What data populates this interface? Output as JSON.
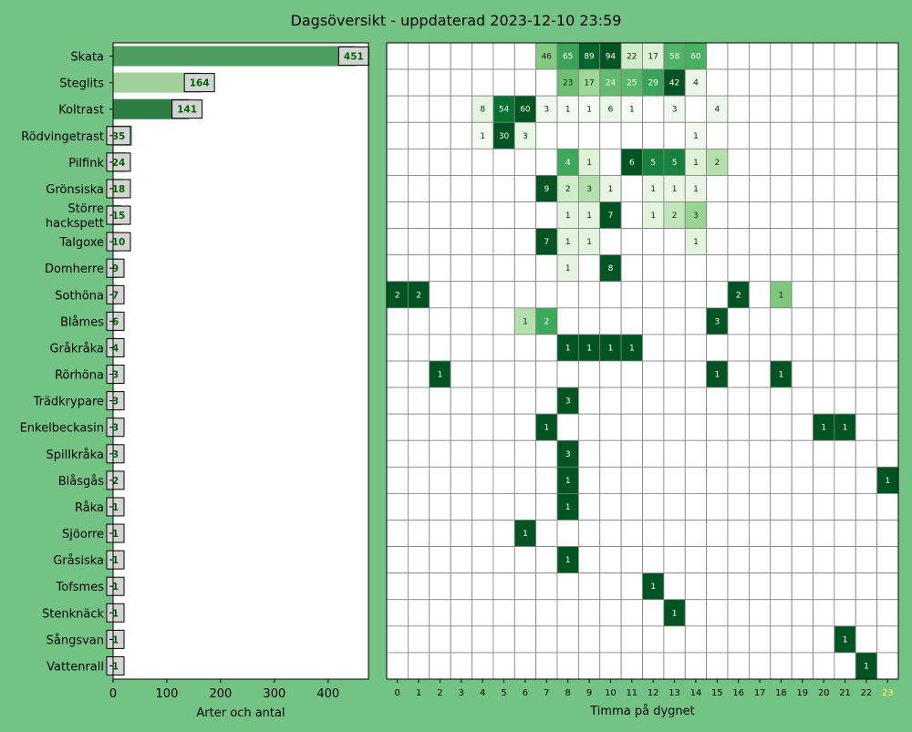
{
  "title": "Dagsöversikt - uppdaterad 2023-12-10 23:59",
  "chart_data": [
    {
      "type": "bar",
      "orientation": "horizontal",
      "xlabel": "Arter och antal",
      "xlim": [
        0,
        475
      ],
      "xticks": [
        0,
        100,
        200,
        300,
        400
      ],
      "categories": [
        "Skata",
        "Steglits",
        "Koltrast",
        "Rödvingetrast",
        "Pilfink",
        "Grönsiska",
        "Större\nhackspett",
        "Talgoxe",
        "Domherre",
        "Sothöna",
        "Blåmes",
        "Gråkråka",
        "Rörhöna",
        "Trädkrypare",
        "Enkelbeckasin",
        "Spillkråka",
        "Blåsgås",
        "Råka",
        "Sjöorre",
        "Gråsiska",
        "Tofsmes",
        "Stenknäck",
        "Sångsvan",
        "Vattenrall"
      ],
      "values": [
        451,
        164,
        141,
        35,
        24,
        18,
        15,
        10,
        9,
        7,
        6,
        4,
        3,
        3,
        3,
        3,
        2,
        1,
        1,
        1,
        1,
        1,
        1,
        1
      ],
      "colors": [
        "#4d9e5f",
        "#a2d09a",
        "#2e7d45",
        "#4d9e5f",
        "#a2d09a",
        "#a2d09a",
        "#4d9e5f",
        "#a2d09a",
        "#a2d09a",
        "#a2d09a",
        "#a2d09a",
        "#a2d09a",
        "#a2d09a",
        "#a2d09a",
        "#a2d09a",
        "#a2d09a",
        "#a2d09a",
        "#a2d09a",
        "#a2d09a",
        "#a2d09a",
        "#a2d09a",
        "#a2d09a",
        "#a2d09a",
        "#a2d09a"
      ]
    },
    {
      "type": "heatmap",
      "xlabel": "Timma på dygnet",
      "hours": [
        "0",
        "1",
        "2",
        "3",
        "4",
        "5",
        "6",
        "7",
        "8",
        "9",
        "10",
        "11",
        "12",
        "13",
        "14",
        "15",
        "16",
        "17",
        "18",
        "19",
        "20",
        "21",
        "22",
        "23"
      ],
      "highlight_hour": "23",
      "highlight_color": "#ffff55",
      "rows": [
        [
          0,
          0,
          0,
          0,
          0,
          0,
          0,
          46,
          65,
          89,
          94,
          22,
          17,
          58,
          60,
          0,
          0,
          0,
          0,
          0,
          0,
          0,
          0,
          0
        ],
        [
          0,
          0,
          0,
          0,
          0,
          0,
          0,
          0,
          23,
          17,
          24,
          25,
          29,
          42,
          4,
          0,
          0,
          0,
          0,
          0,
          0,
          0,
          0,
          0
        ],
        [
          0,
          0,
          0,
          0,
          8,
          54,
          60,
          3,
          1,
          1,
          6,
          1,
          0,
          3,
          0,
          4,
          0,
          0,
          0,
          0,
          0,
          0,
          0,
          0
        ],
        [
          0,
          0,
          0,
          0,
          1,
          30,
          3,
          0,
          0,
          0,
          0,
          0,
          0,
          0,
          1,
          0,
          0,
          0,
          0,
          0,
          0,
          0,
          0,
          0
        ],
        [
          0,
          0,
          0,
          0,
          0,
          0,
          0,
          0,
          4,
          1,
          0,
          6,
          5,
          5,
          1,
          2,
          0,
          0,
          0,
          0,
          0,
          0,
          0,
          0
        ],
        [
          0,
          0,
          0,
          0,
          0,
          0,
          0,
          9,
          2,
          3,
          1,
          0,
          1,
          1,
          1,
          0,
          0,
          0,
          0,
          0,
          0,
          0,
          0,
          0
        ],
        [
          0,
          0,
          0,
          0,
          0,
          0,
          0,
          0,
          1,
          1,
          7,
          0,
          1,
          2,
          3,
          0,
          0,
          0,
          0,
          0,
          0,
          0,
          0,
          0
        ],
        [
          0,
          0,
          0,
          0,
          0,
          0,
          0,
          7,
          1,
          1,
          0,
          0,
          0,
          0,
          1,
          0,
          0,
          0,
          0,
          0,
          0,
          0,
          0,
          0
        ],
        [
          0,
          0,
          0,
          0,
          0,
          0,
          0,
          0,
          1,
          0,
          8,
          0,
          0,
          0,
          0,
          0,
          0,
          0,
          0,
          0,
          0,
          0,
          0,
          0
        ],
        [
          2,
          2,
          0,
          0,
          0,
          0,
          0,
          0,
          0,
          0,
          0,
          0,
          0,
          0,
          0,
          0,
          2,
          0,
          1,
          0,
          0,
          0,
          0,
          0
        ],
        [
          0,
          0,
          0,
          0,
          0,
          0,
          1,
          2,
          0,
          0,
          0,
          0,
          0,
          0,
          0,
          3,
          0,
          0,
          0,
          0,
          0,
          0,
          0,
          0
        ],
        [
          0,
          0,
          0,
          0,
          0,
          0,
          0,
          0,
          1,
          1,
          1,
          1,
          0,
          0,
          0,
          0,
          0,
          0,
          0,
          0,
          0,
          0,
          0,
          0
        ],
        [
          0,
          0,
          1,
          0,
          0,
          0,
          0,
          0,
          0,
          0,
          0,
          0,
          0,
          0,
          0,
          1,
          0,
          0,
          1,
          0,
          0,
          0,
          0,
          0
        ],
        [
          0,
          0,
          0,
          0,
          0,
          0,
          0,
          0,
          3,
          0,
          0,
          0,
          0,
          0,
          0,
          0,
          0,
          0,
          0,
          0,
          0,
          0,
          0,
          0
        ],
        [
          0,
          0,
          0,
          0,
          0,
          0,
          0,
          1,
          0,
          0,
          0,
          0,
          0,
          0,
          0,
          0,
          0,
          0,
          0,
          0,
          1,
          1,
          0,
          0
        ],
        [
          0,
          0,
          0,
          0,
          0,
          0,
          0,
          0,
          3,
          0,
          0,
          0,
          0,
          0,
          0,
          0,
          0,
          0,
          0,
          0,
          0,
          0,
          0,
          0
        ],
        [
          0,
          0,
          0,
          0,
          0,
          0,
          0,
          0,
          1,
          0,
          0,
          0,
          0,
          0,
          0,
          0,
          0,
          0,
          0,
          0,
          0,
          0,
          0,
          1
        ],
        [
          0,
          0,
          0,
          0,
          0,
          0,
          0,
          0,
          1,
          0,
          0,
          0,
          0,
          0,
          0,
          0,
          0,
          0,
          0,
          0,
          0,
          0,
          0,
          0
        ],
        [
          0,
          0,
          0,
          0,
          0,
          0,
          1,
          0,
          0,
          0,
          0,
          0,
          0,
          0,
          0,
          0,
          0,
          0,
          0,
          0,
          0,
          0,
          0,
          0
        ],
        [
          0,
          0,
          0,
          0,
          0,
          0,
          0,
          0,
          1,
          0,
          0,
          0,
          0,
          0,
          0,
          0,
          0,
          0,
          0,
          0,
          0,
          0,
          0,
          0
        ],
        [
          0,
          0,
          0,
          0,
          0,
          0,
          0,
          0,
          0,
          0,
          0,
          0,
          1,
          0,
          0,
          0,
          0,
          0,
          0,
          0,
          0,
          0,
          0,
          0
        ],
        [
          0,
          0,
          0,
          0,
          0,
          0,
          0,
          0,
          0,
          0,
          0,
          0,
          0,
          1,
          0,
          0,
          0,
          0,
          0,
          0,
          0,
          0,
          0,
          0
        ],
        [
          0,
          0,
          0,
          0,
          0,
          0,
          0,
          0,
          0,
          0,
          0,
          0,
          0,
          0,
          0,
          0,
          0,
          0,
          0,
          0,
          0,
          1,
          0,
          0
        ],
        [
          0,
          0,
          0,
          0,
          0,
          0,
          0,
          0,
          0,
          0,
          0,
          0,
          0,
          0,
          0,
          0,
          0,
          0,
          0,
          0,
          0,
          0,
          1,
          0
        ]
      ]
    }
  ]
}
